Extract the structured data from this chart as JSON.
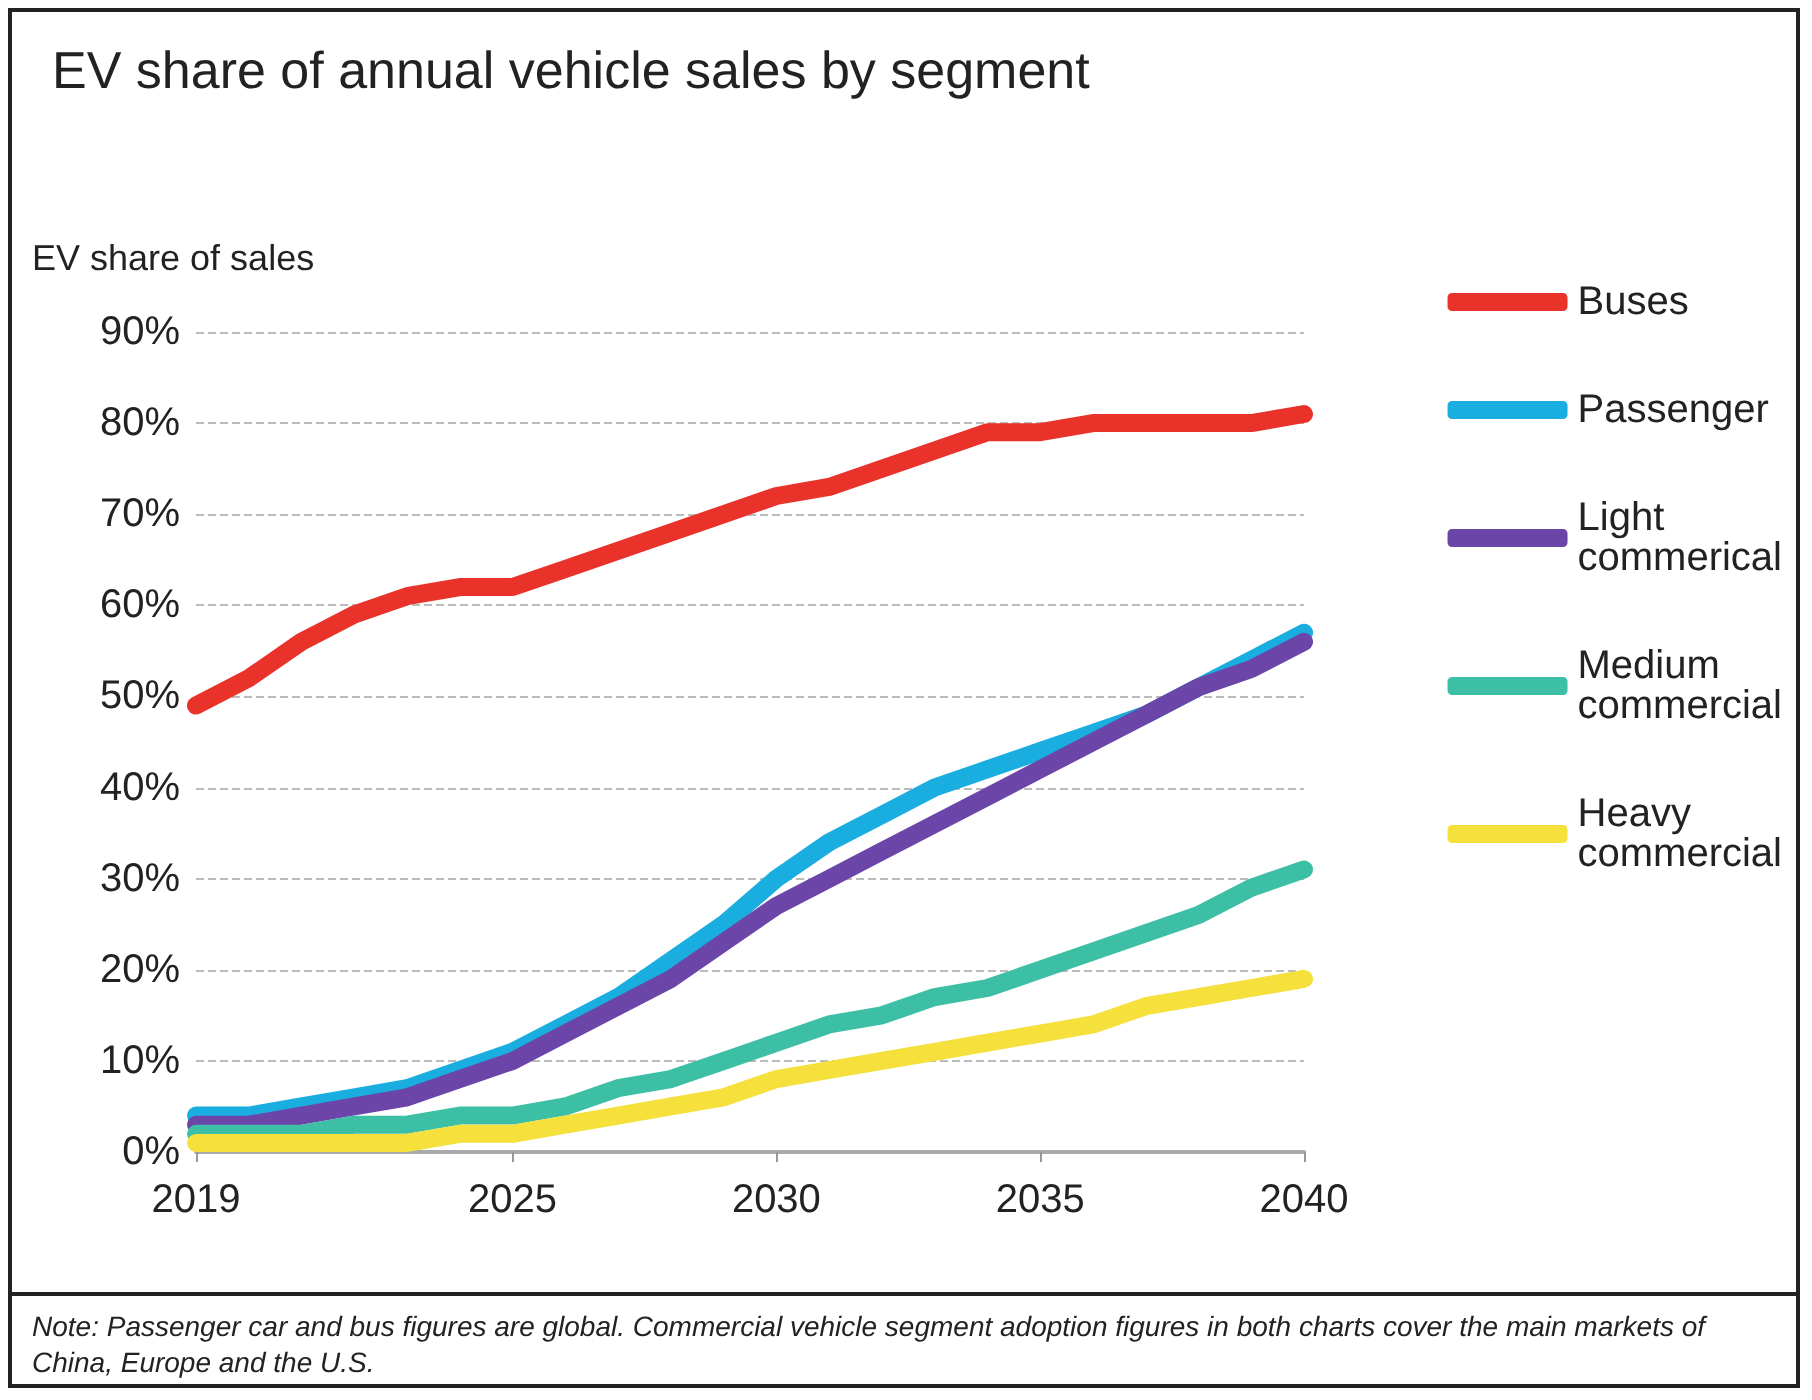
{
  "chart_data": {
    "type": "line",
    "title": "EV share of annual vehicle sales by segment",
    "ylabel": "EV share of sales",
    "categories": [
      "2019",
      null,
      null,
      null,
      null,
      null,
      "2025",
      null,
      null,
      null,
      null,
      "2030",
      null,
      null,
      null,
      null,
      "2035",
      null,
      null,
      null,
      null,
      "2040"
    ],
    "series": [
      {
        "name": "Buses",
        "color": "#e8322a",
        "values": [
          49,
          52,
          56,
          59,
          61,
          62,
          62,
          64,
          66,
          68,
          70,
          72,
          73,
          75,
          77,
          79,
          79,
          80,
          80,
          80,
          80,
          81
        ]
      },
      {
        "name": "Passenger",
        "color": "#1aaee0",
        "values": [
          4,
          4,
          5,
          6,
          7,
          9,
          11,
          14,
          17,
          21,
          25,
          30,
          34,
          37,
          40,
          42,
          44,
          46,
          48,
          51,
          54,
          57
        ]
      },
      {
        "name": "Light commerical",
        "color": "#6b45a8",
        "values": [
          3,
          3,
          4,
          5,
          6,
          8,
          10,
          13,
          16,
          19,
          23,
          27,
          30,
          33,
          36,
          39,
          42,
          45,
          48,
          51,
          53,
          56
        ]
      },
      {
        "name": "Medium commercial",
        "color": "#3cbfa4",
        "values": [
          2,
          2,
          2,
          3,
          3,
          4,
          4,
          5,
          7,
          8,
          10,
          12,
          14,
          15,
          17,
          18,
          20,
          22,
          24,
          26,
          29,
          31
        ]
      },
      {
        "name": "Heavy commercial",
        "color": "#f5e03c",
        "values": [
          1,
          1,
          1,
          1,
          1,
          2,
          2,
          3,
          4,
          5,
          6,
          8,
          9,
          10,
          11,
          12,
          13,
          14,
          16,
          17,
          18,
          19
        ]
      }
    ],
    "ylim": [
      0,
      90
    ],
    "yticks": [
      {
        "value": 0,
        "label": "0%"
      },
      {
        "value": 10,
        "label": "10%"
      },
      {
        "value": 20,
        "label": "20%"
      },
      {
        "value": 30,
        "label": "30%"
      },
      {
        "value": 40,
        "label": "40%"
      },
      {
        "value": 50,
        "label": "50%"
      },
      {
        "value": 60,
        "label": "60%"
      },
      {
        "value": 70,
        "label": "70%"
      },
      {
        "value": 80,
        "label": "80%"
      },
      {
        "value": 90,
        "label": "90%"
      }
    ],
    "grid": "y",
    "legend": "right",
    "marker": "none",
    "line_style": "solid",
    "annotations": [
      "Note: Passenger car and bus figures are global. Commercial vehicle segment adoption figures in both charts cover the main markets of China, Europe and the U.S."
    ]
  }
}
